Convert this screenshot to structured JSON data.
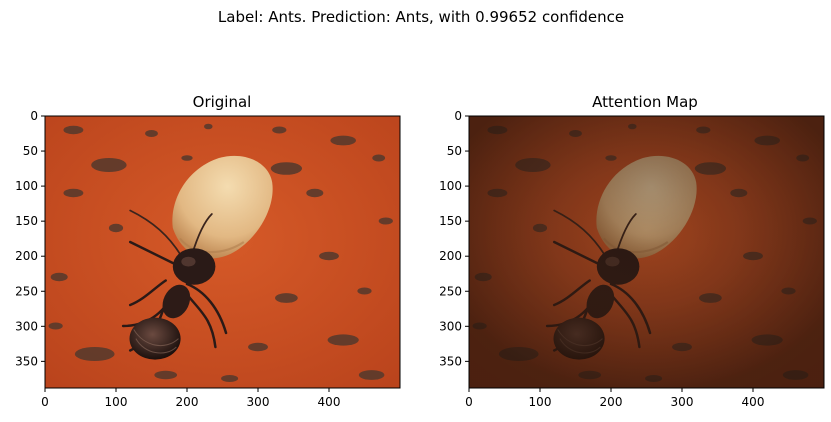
{
  "figure": {
    "suptitle": "Label: Ants. Prediction: Ants, with 0.99652 confidence"
  },
  "chart_data": [
    {
      "type": "image",
      "title": "Original",
      "content": "ant-carrying-seed-photo",
      "xlim": [
        0,
        500
      ],
      "ylim": [
        388,
        0
      ],
      "xticks": [
        0,
        100,
        200,
        300,
        400
      ],
      "yticks": [
        0,
        50,
        100,
        150,
        200,
        250,
        300,
        350
      ]
    },
    {
      "type": "image",
      "title": "Attention Map",
      "content": "ant-attention-overlay",
      "xlim": [
        0,
        500
      ],
      "ylim": [
        388,
        0
      ],
      "xticks": [
        0,
        100,
        200,
        300,
        400
      ],
      "yticks": [
        0,
        50,
        100,
        150,
        200,
        250,
        300,
        350
      ]
    }
  ],
  "colors": {
    "background": "#c94a1e",
    "background_dark": "#a8391a",
    "seed": "#e9c490",
    "seed_shadow": "#c59462",
    "ant_body": "#2a1a17",
    "dirt": "#5a3a2c",
    "attention_tint": "#3a1f12"
  }
}
